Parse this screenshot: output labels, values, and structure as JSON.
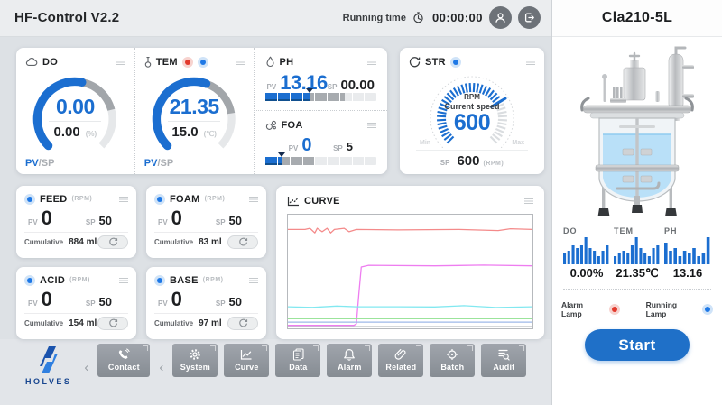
{
  "topbar": {
    "title": "HF-Control V2.2",
    "running_time_label": "Running time",
    "running_time_value": "00:00:00"
  },
  "gauges": {
    "do": {
      "label": "DO",
      "pv": "0.00",
      "sp": "0.00",
      "unit": "(%)",
      "pv_tag": "PV",
      "sp_tag": "/SP",
      "fill": 0.54,
      "mid": 0.78
    },
    "tem": {
      "label": "TEM",
      "pv": "21.35",
      "sp": "15.0",
      "unit": "(℃)",
      "pv_tag": "PV",
      "sp_tag": "/SP",
      "fill": 0.57,
      "mid": 0.8
    }
  },
  "ph": {
    "label": "PH",
    "pv_label": "PV",
    "pv": "13.16",
    "sp_label": "SP",
    "sp": "00.00",
    "fill": 40,
    "mid": 72
  },
  "foa": {
    "label": "FOA",
    "pv_label": "PV",
    "pv": "0",
    "sp_label": "SP",
    "sp": "5",
    "fill": 15,
    "mid": 45
  },
  "str": {
    "label": "STR",
    "rpm_label": "RPM",
    "subtitle": "Current speed",
    "pv": "600",
    "sp_label": "SP",
    "sp": "600",
    "sp_unit": "(RPM)",
    "min_label": "Min",
    "max_label": "Max",
    "fill": 0.72
  },
  "pumps": [
    {
      "label": "FEED",
      "unit": "(RPM)",
      "pv_label": "PV",
      "pv": "0",
      "sp_label": "SP",
      "sp": "50",
      "cum_label": "Cumulative",
      "cum_value": "884 ml"
    },
    {
      "label": "FOAM",
      "unit": "(RPM)",
      "pv_label": "PV",
      "pv": "0",
      "sp_label": "SP",
      "sp": "50",
      "cum_label": "Cumulative",
      "cum_value": "83 ml"
    },
    {
      "label": "ACID",
      "unit": "(RPM)",
      "pv_label": "PV",
      "pv": "0",
      "sp_label": "SP",
      "sp": "50",
      "cum_label": "Cumulative",
      "cum_value": "154 ml"
    },
    {
      "label": "BASE",
      "unit": "(RPM)",
      "pv_label": "PV",
      "pv": "0",
      "sp_label": "SP",
      "sp": "50",
      "cum_label": "Cumulative",
      "cum_value": "97 ml"
    }
  ],
  "curve": {
    "title": "CURVE"
  },
  "chart_data": {
    "type": "line",
    "title": "CURVE",
    "xlabel": "",
    "ylabel": "",
    "x_range": [
      0,
      100
    ],
    "y_range": [
      0,
      100
    ],
    "grid": false,
    "legend": "none",
    "series": [
      {
        "name": "series-red",
        "color": "#f48a8a",
        "points": [
          [
            0,
            87
          ],
          [
            7,
            87
          ],
          [
            9,
            88
          ],
          [
            11,
            84
          ],
          [
            12,
            88
          ],
          [
            14,
            85
          ],
          [
            16,
            88
          ],
          [
            17.5,
            84
          ],
          [
            19,
            87
          ],
          [
            23,
            88
          ],
          [
            25,
            85
          ],
          [
            28,
            87
          ],
          [
            45,
            86.6
          ],
          [
            70,
            87
          ],
          [
            86,
            86
          ],
          [
            91,
            87.6
          ],
          [
            100,
            87
          ]
        ]
      },
      {
        "name": "series-magenta",
        "color": "#ee7df0",
        "points": [
          [
            0,
            2.6
          ],
          [
            27,
            2.6
          ],
          [
            28,
            4
          ],
          [
            29,
            30
          ],
          [
            30,
            54
          ],
          [
            33,
            55.5
          ],
          [
            60,
            55
          ],
          [
            80,
            55.6
          ],
          [
            100,
            55
          ]
        ]
      },
      {
        "name": "series-cyan",
        "color": "#82e8f0",
        "points": [
          [
            0,
            19
          ],
          [
            10,
            18.4
          ],
          [
            20,
            19.6
          ],
          [
            28,
            19
          ],
          [
            45,
            19
          ],
          [
            60,
            18.8
          ],
          [
            72,
            19.9
          ],
          [
            85,
            18.3
          ],
          [
            100,
            19
          ]
        ]
      },
      {
        "name": "series-green",
        "color": "#9be49b",
        "points": [
          [
            0,
            8.5
          ],
          [
            100,
            8.5
          ]
        ]
      },
      {
        "name": "series-lightblue",
        "color": "#9db8e8",
        "points": [
          [
            0,
            5.5
          ],
          [
            100,
            5.5
          ]
        ]
      },
      {
        "name": "series-gray",
        "color": "#bcc0c4",
        "points": [
          [
            0,
            1.6
          ],
          [
            100,
            1.6
          ]
        ]
      }
    ]
  },
  "nav": {
    "brand": "HOLVES",
    "contact_label": "Contact",
    "items": [
      {
        "label": "System"
      },
      {
        "label": "Curve"
      },
      {
        "label": "Data"
      },
      {
        "label": "Alarm"
      },
      {
        "label": "Related"
      },
      {
        "label": "Batch"
      },
      {
        "label": "Audit"
      }
    ]
  },
  "side": {
    "title": "Cla210-5L",
    "stats": [
      {
        "label": "DO",
        "value": "0.00%",
        "bars": [
          4,
          5,
          7,
          6,
          7,
          10,
          6,
          5,
          3,
          5,
          7
        ]
      },
      {
        "label": "TEM",
        "value": "21.35℃",
        "bars": [
          3,
          4,
          5,
          4,
          7,
          10,
          6,
          4,
          3,
          6,
          7
        ]
      },
      {
        "label": "PH",
        "value": "13.16",
        "bars": [
          8,
          5,
          6,
          3,
          5,
          4,
          6,
          3,
          4,
          10
        ]
      }
    ],
    "alarm_label": "Alarm Lamp",
    "running_label": "Running Lamp",
    "start_label": "Start"
  },
  "colors": {
    "primary": "#1b6ed0",
    "alarm_red": "#e2392d",
    "lamp_blue": "#1e78e6",
    "bar_blue": "#1b6ed0"
  }
}
